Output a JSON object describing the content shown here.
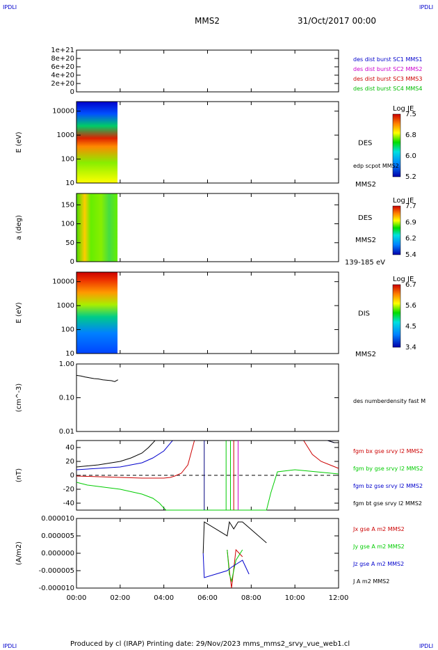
{
  "header": {
    "logo_text": "IPDLI",
    "spacecraft": "MMS2",
    "date": "31/Oct/2017 00:00"
  },
  "footer": {
    "text": "Produced by cl (IRAP)   Printing date: 29/Nov/2023   mms_mms2_srvy_vue_web1.cl"
  },
  "time_axis": {
    "ticks": [
      "00:00",
      "02:00",
      "04:00",
      "06:00",
      "08:00",
      "10:00",
      "12:00"
    ],
    "range_hours": [
      0,
      12
    ]
  },
  "chart_data": [
    {
      "type": "line",
      "panel": "burst-flags",
      "yticks": [
        "0",
        "2e+20",
        "4e+20",
        "6e+20",
        "8e+20",
        "1e+21"
      ],
      "ylim": [
        0,
        1e+21
      ],
      "series": [
        {
          "name": "des dist burst SC1 MMS1",
          "color": "#0000cc",
          "x": [],
          "y": []
        },
        {
          "name": "des dist burst SC2 MMS2",
          "color": "#cc00cc",
          "x": [],
          "y": []
        },
        {
          "name": "des dist burst SC3 MMS3",
          "color": "#cc0000",
          "x": [],
          "y": []
        },
        {
          "name": "des dist burst SC4 MMS4",
          "color": "#00bb00",
          "x": [],
          "y": []
        }
      ]
    },
    {
      "type": "heatmap",
      "panel": "des-energy-spectrogram",
      "ylabel": "E (eV)",
      "yscale": "log",
      "yticks": [
        "10",
        "100",
        "1000",
        "10000"
      ],
      "ylim": [
        10,
        25000
      ],
      "xlim_hours": [
        0,
        1.9
      ],
      "label": "DES",
      "extra_label": "edp scpot MMS2",
      "colorbar": {
        "title": "Log JE",
        "ticks": [
          "7.5",
          "6.8",
          "6.0",
          "5.2"
        ]
      }
    },
    {
      "type": "heatmap",
      "panel": "des-pitch-angle",
      "ylabel": "a (deg)",
      "yticks": [
        "0",
        "50",
        "100",
        "150"
      ],
      "ylim": [
        0,
        180
      ],
      "xlim_hours": [
        0,
        1.9
      ],
      "label": "DES",
      "sublabel": "MMS2",
      "top_label": "MMS2",
      "energy_band": "139-185 eV",
      "colorbar": {
        "title": "Log JE",
        "ticks": [
          "7.7",
          "6.9",
          "6.2",
          "5.4"
        ]
      }
    },
    {
      "type": "heatmap",
      "panel": "dis-energy-spectrogram",
      "ylabel": "E (eV)",
      "yscale": "log",
      "yticks": [
        "10",
        "100",
        "1000",
        "10000"
      ],
      "ylim": [
        10,
        25000
      ],
      "xlim_hours": [
        0,
        1.9
      ],
      "label": "DIS",
      "bottom_label": "MMS2",
      "colorbar": {
        "title": "Log JE",
        "ticks": [
          "6.7",
          "5.6",
          "4.5",
          "3.4"
        ]
      }
    },
    {
      "type": "line",
      "panel": "density",
      "ylabel": "(cm^-3)",
      "yscale": "log",
      "yticks": [
        "0.01",
        "0.10",
        "1.00"
      ],
      "ylim": [
        0.01,
        1.0
      ],
      "series": [
        {
          "name": "des numberdensity fast M",
          "color": "#000000",
          "x": [
            0.0,
            0.2,
            0.4,
            0.6,
            0.8,
            1.0,
            1.2,
            1.4,
            1.6,
            1.75,
            1.9
          ],
          "y": [
            0.46,
            0.44,
            0.41,
            0.39,
            0.37,
            0.36,
            0.34,
            0.33,
            0.32,
            0.3,
            0.34
          ]
        }
      ]
    },
    {
      "type": "line",
      "panel": "magnetic-field",
      "ylabel": "(nT)",
      "yticks": [
        "-40",
        "-20",
        "0",
        "20",
        "40"
      ],
      "ylim": [
        -50,
        50
      ],
      "series": [
        {
          "name": "fgm bx gse srvy l2 MMS2",
          "color": "#cc0000",
          "x": [
            0,
            1,
            2,
            3,
            4,
            4.3,
            4.5,
            4.8,
            5.1,
            5.4,
            10.4,
            10.8,
            11.2,
            11.6,
            12
          ],
          "y": [
            -1,
            -2,
            -3,
            -4,
            -4,
            -3,
            -1,
            3,
            15,
            50,
            50,
            30,
            20,
            15,
            10
          ]
        },
        {
          "name": "fgm by gse srvy l2 MMS2",
          "color": "#00cc00",
          "x": [
            0,
            0.5,
            1,
            2,
            3,
            3.5,
            3.8,
            4.0,
            4.1,
            8.7,
            8.9,
            9.2,
            10,
            11,
            12
          ],
          "y": [
            -10,
            -14,
            -16,
            -20,
            -27,
            -33,
            -40,
            -47,
            -55,
            -55,
            -25,
            5,
            8,
            5,
            2
          ]
        },
        {
          "name": "fgm bz gse srvy l2 MMS2",
          "color": "#0000cc",
          "x": [
            0,
            1,
            2,
            2.5,
            3,
            3.5,
            4,
            4.4,
            11.5,
            11.8,
            12
          ],
          "y": [
            8,
            10,
            12,
            15,
            18,
            25,
            35,
            50,
            50,
            47,
            47
          ]
        },
        {
          "name": "fgm bt gse srvy l2 MMS2",
          "color": "#000000",
          "x": [
            0,
            1,
            2,
            2.5,
            3,
            3.3,
            3.6,
            11.5,
            11.8,
            12
          ],
          "y": [
            12,
            15,
            20,
            25,
            32,
            40,
            50,
            50,
            47,
            47
          ]
        }
      ]
    },
    {
      "type": "line",
      "panel": "current-density",
      "ylabel": "(A/m2)",
      "yticks": [
        "-0.000010",
        "-0.000005",
        "0.000000",
        "0.000005",
        "0.000010"
      ],
      "ylim": [
        -1e-05,
        1e-05
      ],
      "series": [
        {
          "name": "Jx gse A m2 MMS2",
          "color": "#cc0000",
          "x": [
            6.9,
            7.0,
            7.1,
            7.3,
            7.6
          ],
          "y": [
            1e-06,
            -5e-06,
            -1e-05,
            1e-06,
            -1e-06
          ]
        },
        {
          "name": "Jy gse A m2 MMS2",
          "color": "#00cc00",
          "x": [
            6.9,
            7.0,
            7.1,
            7.3,
            7.6
          ],
          "y": [
            1e-06,
            -6e-06,
            -8e-06,
            -2e-06,
            1e-06
          ]
        },
        {
          "name": "Jz gse A m2 MMS2",
          "color": "#0000cc",
          "x": [
            5.8,
            5.85,
            6.9,
            7.1,
            7.6,
            7.9
          ],
          "y": [
            0.0,
            -7e-06,
            -5e-06,
            -4e-06,
            -2e-06,
            -6e-06
          ]
        },
        {
          "name": "J A m2 MMS2",
          "color": "#000000",
          "x": [
            5.8,
            5.85,
            6.9,
            7.0,
            7.2,
            7.4,
            7.6,
            8.7
          ],
          "y": [
            0.0,
            9e-06,
            5e-06,
            9e-06,
            7e-06,
            9e-06,
            9e-06,
            3e-06
          ]
        }
      ]
    }
  ]
}
